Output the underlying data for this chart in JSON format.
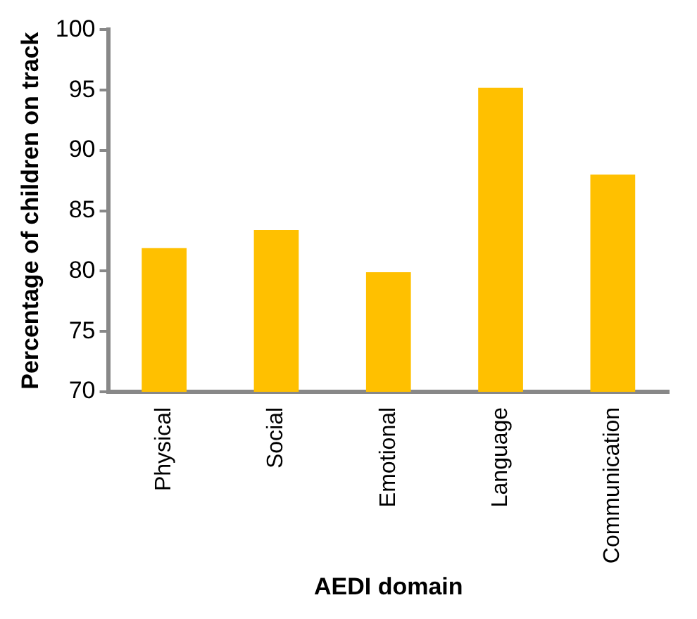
{
  "chart_data": {
    "type": "bar",
    "xlabel": "AEDI domain",
    "ylabel": "Percentage of children on track",
    "categories": [
      "Physical",
      "Social",
      "Emotional",
      "Language",
      "Communication"
    ],
    "values": [
      81.9,
      83.4,
      79.9,
      95.2,
      88.0
    ],
    "color": "#ffc000",
    "ylim": [
      70,
      100
    ],
    "yticks": [
      70,
      75,
      80,
      85,
      90,
      95,
      100
    ],
    "grid": false,
    "legend": false
  }
}
